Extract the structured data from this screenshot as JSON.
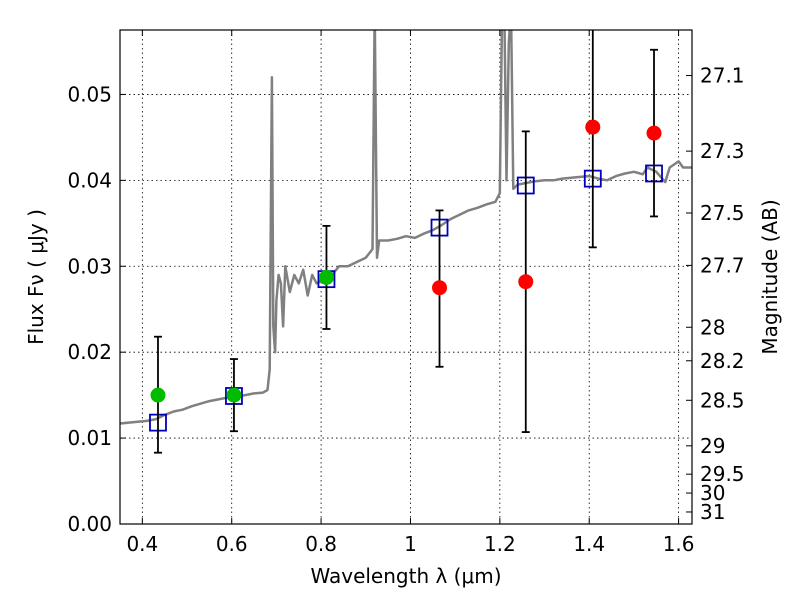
{
  "chart_data": {
    "type": "scatter",
    "xlabel": "Wavelength  λ (μm)",
    "ylabel": "Flux  Fν  ( μJy )",
    "y2label": "Magnitude (AB)",
    "xlim": [
      0.35,
      1.63
    ],
    "ylim": [
      0.0,
      0.0575
    ],
    "xticks": [
      0.4,
      0.6,
      0.8,
      1.0,
      1.2,
      1.4,
      1.6
    ],
    "xtick_labels": [
      "0.4",
      "0.6",
      "0.8",
      "1",
      "1.2",
      "1.4",
      "1.6"
    ],
    "yticks": [
      0.0,
      0.01,
      0.02,
      0.03,
      0.04,
      0.05
    ],
    "ytick_labels": [
      "0.00",
      "0.01",
      "0.02",
      "0.03",
      "0.04",
      "0.05"
    ],
    "y2ticks": [
      {
        "label": "27.1",
        "flux": 0.0522
      },
      {
        "label": "27.3",
        "flux": 0.0434
      },
      {
        "label": "27.5",
        "flux": 0.0362
      },
      {
        "label": "27.7",
        "flux": 0.0301
      },
      {
        "label": "28",
        "flux": 0.0229
      },
      {
        "label": "28.2",
        "flux": 0.019
      },
      {
        "label": "28.5",
        "flux": 0.0144
      },
      {
        "label": "29",
        "flux": 0.0091
      },
      {
        "label": "29.5",
        "flux": 0.0058
      },
      {
        "label": "30",
        "flux": 0.0036
      },
      {
        "label": "31",
        "flux": 0.0014
      }
    ],
    "grid": true,
    "colors": {
      "spectrum": "#808080",
      "green": "#00bb00",
      "red": "#ff0000",
      "model": "#0000bb",
      "errorbar": "#000000"
    },
    "spectrum": [
      [
        0.35,
        0.0117
      ],
      [
        0.37,
        0.0118
      ],
      [
        0.39,
        0.0119
      ],
      [
        0.41,
        0.012
      ],
      [
        0.43,
        0.0122
      ],
      [
        0.45,
        0.0127
      ],
      [
        0.47,
        0.0131
      ],
      [
        0.49,
        0.0133
      ],
      [
        0.51,
        0.0137
      ],
      [
        0.53,
        0.014
      ],
      [
        0.55,
        0.0143
      ],
      [
        0.57,
        0.0145
      ],
      [
        0.59,
        0.0147
      ],
      [
        0.61,
        0.0148
      ],
      [
        0.63,
        0.015
      ],
      [
        0.65,
        0.0152
      ],
      [
        0.67,
        0.0153
      ],
      [
        0.68,
        0.0156
      ],
      [
        0.685,
        0.018
      ],
      [
        0.69,
        0.052
      ],
      [
        0.693,
        0.023
      ],
      [
        0.697,
        0.02
      ],
      [
        0.7,
        0.026
      ],
      [
        0.705,
        0.029
      ],
      [
        0.71,
        0.028
      ],
      [
        0.715,
        0.023
      ],
      [
        0.72,
        0.03
      ],
      [
        0.73,
        0.027
      ],
      [
        0.74,
        0.029
      ],
      [
        0.75,
        0.028
      ],
      [
        0.76,
        0.0296
      ],
      [
        0.77,
        0.0266
      ],
      [
        0.78,
        0.029
      ],
      [
        0.79,
        0.028
      ],
      [
        0.8,
        0.0283
      ],
      [
        0.82,
        0.0287
      ],
      [
        0.84,
        0.03
      ],
      [
        0.86,
        0.03
      ],
      [
        0.88,
        0.0305
      ],
      [
        0.9,
        0.031
      ],
      [
        0.915,
        0.032
      ],
      [
        0.92,
        0.06
      ],
      [
        0.925,
        0.031
      ],
      [
        0.93,
        0.033
      ],
      [
        0.95,
        0.033
      ],
      [
        0.97,
        0.0332
      ],
      [
        0.99,
        0.0335
      ],
      [
        1.01,
        0.0333
      ],
      [
        1.03,
        0.0338
      ],
      [
        1.05,
        0.0342
      ],
      [
        1.07,
        0.0348
      ],
      [
        1.09,
        0.0355
      ],
      [
        1.11,
        0.036
      ],
      [
        1.13,
        0.0365
      ],
      [
        1.15,
        0.0368
      ],
      [
        1.17,
        0.0372
      ],
      [
        1.19,
        0.0375
      ],
      [
        1.2,
        0.0385
      ],
      [
        1.205,
        0.06
      ],
      [
        1.21,
        0.06
      ],
      [
        1.215,
        0.04
      ],
      [
        1.22,
        0.056
      ],
      [
        1.225,
        0.06
      ],
      [
        1.23,
        0.039
      ],
      [
        1.24,
        0.0395
      ],
      [
        1.26,
        0.0397
      ],
      [
        1.28,
        0.0399
      ],
      [
        1.3,
        0.04
      ],
      [
        1.32,
        0.04
      ],
      [
        1.34,
        0.0402
      ],
      [
        1.36,
        0.0403
      ],
      [
        1.38,
        0.0404
      ],
      [
        1.4,
        0.0405
      ],
      [
        1.42,
        0.0402
      ],
      [
        1.44,
        0.04
      ],
      [
        1.46,
        0.0405
      ],
      [
        1.48,
        0.0408
      ],
      [
        1.5,
        0.041
      ],
      [
        1.52,
        0.0407
      ],
      [
        1.53,
        0.0415
      ],
      [
        1.55,
        0.041
      ],
      [
        1.57,
        0.0398
      ],
      [
        1.58,
        0.0415
      ],
      [
        1.6,
        0.0422
      ],
      [
        1.61,
        0.0415
      ],
      [
        1.63,
        0.0415
      ]
    ],
    "photometry": [
      {
        "x": 0.435,
        "y": 0.015,
        "yerr_low": 0.0083,
        "yerr_high": 0.0218,
        "color": "green"
      },
      {
        "x": 0.605,
        "y": 0.015,
        "yerr_low": 0.0108,
        "yerr_high": 0.0192,
        "color": "green"
      },
      {
        "x": 0.812,
        "y": 0.0287,
        "yerr_low": 0.0227,
        "yerr_high": 0.0347,
        "color": "green"
      },
      {
        "x": 1.065,
        "y": 0.0275,
        "yerr_low": 0.0183,
        "yerr_high": 0.0365,
        "color": "red"
      },
      {
        "x": 1.258,
        "y": 0.0282,
        "yerr_low": 0.0107,
        "yerr_high": 0.0457,
        "color": "red"
      },
      {
        "x": 1.408,
        "y": 0.0462,
        "yerr_low": 0.0322,
        "yerr_high": 0.058,
        "color": "red"
      },
      {
        "x": 1.545,
        "y": 0.0455,
        "yerr_low": 0.0358,
        "yerr_high": 0.0552,
        "color": "red"
      }
    ],
    "model_points": [
      {
        "x": 0.435,
        "y": 0.0118
      },
      {
        "x": 0.605,
        "y": 0.0149
      },
      {
        "x": 0.812,
        "y": 0.0285
      },
      {
        "x": 1.065,
        "y": 0.0345
      },
      {
        "x": 1.258,
        "y": 0.0394
      },
      {
        "x": 1.408,
        "y": 0.0402
      },
      {
        "x": 1.545,
        "y": 0.0408
      }
    ]
  }
}
